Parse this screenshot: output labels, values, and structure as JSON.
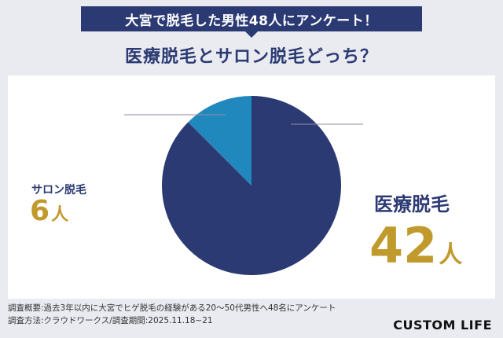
{
  "banner": {
    "text": "大宮で脱毛した男性48人にアンケート！"
  },
  "heading": {
    "text": "医療脱毛とサロン脱毛どっち？"
  },
  "chart_data": {
    "type": "pie",
    "slices": [
      {
        "label": "医療脱毛",
        "value": 42,
        "unit": "人",
        "color": "#2c3a73"
      },
      {
        "label": "サロン脱毛",
        "value": 6,
        "unit": "人",
        "color": "#2188bd"
      }
    ],
    "total": 48
  },
  "footer": {
    "line1": "調査概要:過去3年以内に大宮でヒゲ脱毛の経験がある20～50代男性へ48名にアンケート",
    "line2": "調査方法:クラウドワークス/調査期間:2025.11.18~21"
  },
  "logo": {
    "text": "CUSTOM LIFE"
  }
}
